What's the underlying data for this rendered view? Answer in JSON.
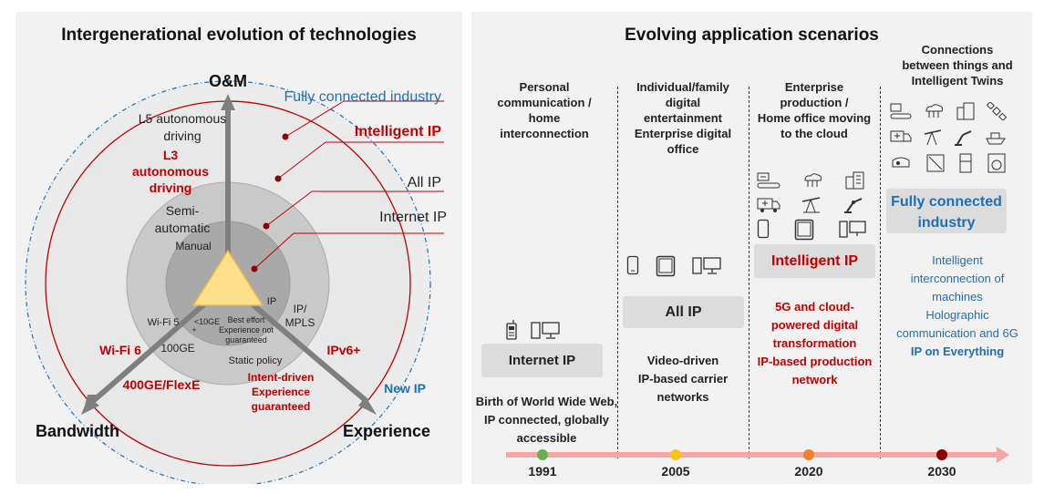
{
  "left": {
    "title": "Intergenerational evolution of technologies",
    "axes": {
      "top": "O&M",
      "left": "Bandwidth",
      "right": "Experience"
    },
    "rings": {
      "fully_connected": "Fully connected industry",
      "intelligent_ip": "Intelligent IP",
      "all_ip": "All IP",
      "internet_ip": "Internet IP",
      "new_ip": "New IP"
    },
    "om_levels": {
      "l5": "L5 autonomous driving",
      "l5_line1": "L5 autonomous",
      "l5_line2": "driving",
      "l3_line1": "L3",
      "l3_line2": "autonomous",
      "l3_line3": "driving",
      "semi_line1": "Semi-",
      "semi_line2": "automatic",
      "manual": "Manual"
    },
    "inner": {
      "ip": "IP",
      "ip_mpls_line1": "IP/",
      "ip_mpls_line2": "MPLS",
      "wifi5": "Wi-Fi 5",
      "lt10ge_line1": "<10GE",
      "lt10ge_line2": "+",
      "best_effort_line1": "Best effort",
      "best_effort_line2": "Experience not",
      "best_effort_line3": "guaranteed",
      "ge100": "100GE",
      "static_policy": "Static policy"
    },
    "outer": {
      "wifi6": "Wi-Fi 6",
      "ipv6plus": "IPv6+",
      "ge400": "400GE/FlexE",
      "intent_line1": "Intent-driven",
      "intent_line2": "Experience",
      "intent_line3": "guaranteed"
    },
    "colors": {
      "red": "#c00000",
      "blue": "#1f6fb5",
      "triangle": "#ffe08a"
    }
  },
  "right": {
    "title": "Evolving application scenarios",
    "eras": [
      {
        "header": [
          "Personal",
          "communication /",
          "home",
          "interconnection"
        ],
        "tag": "Internet IP",
        "desc": [
          "Birth of World Wide Web,",
          "IP connected, globally",
          "accessible"
        ],
        "icons": [
          "mobile-phone-icon",
          "desktop-computer-icon"
        ]
      },
      {
        "header": [
          "Individual/family",
          "digital",
          "entertainment",
          "Enterprise digital",
          "office"
        ],
        "tag": "All IP",
        "desc": [
          "Video-driven",
          "IP-based carrier",
          "networks"
        ],
        "icons": [
          "smartphone-icon",
          "tablet-icon",
          "desktop-computer-icon"
        ]
      },
      {
        "header": [
          "Enterprise",
          "production /",
          "Home office moving",
          "to the cloud"
        ],
        "tag": "Intelligent IP",
        "desc": [
          "5G and cloud-",
          "powered digital",
          "transformation",
          "IP-based production",
          "network"
        ],
        "icons": [
          "conveyor-icon",
          "cloud-network-icon",
          "building-icon",
          "ambulance-icon",
          "oil-pump-icon",
          "robot-arm-icon",
          "smartphone-icon",
          "tablet-icon",
          "desktop-computer-icon"
        ]
      },
      {
        "header": [
          "Connections",
          "between things and",
          "Intelligent Twins"
        ],
        "tag_line1": "Fully connected",
        "tag_line2": "industry",
        "desc": [
          "Intelligent",
          "interconnection of",
          "machines",
          "Holographic",
          "communication and 6G"
        ],
        "desc_emph": "IP on Everything",
        "icons": [
          "conveyor-icon",
          "cloud-network-icon",
          "building-icon",
          "satellite-icon",
          "ambulance-icon",
          "oil-pump-icon",
          "robot-arm-icon",
          "ship-icon",
          "vr-headset-icon",
          "solar-panel-icon",
          "refrigerator-icon",
          "washing-machine-icon"
        ]
      }
    ],
    "timeline": {
      "years": [
        "1991",
        "2005",
        "2020",
        "2030"
      ],
      "dot_colors": [
        "#6ab04c",
        "#f5c518",
        "#f08030",
        "#8b0000"
      ]
    }
  }
}
